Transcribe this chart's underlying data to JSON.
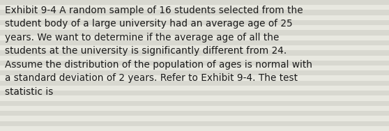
{
  "text": "Exhibit 9-4 A random sample of 16 students selected from the\nstudent body of a large university had an average age of 25\nyears. We want to determine if the average age of all the\nstudents at the university is significantly different from 24.\nAssume the distribution of the population of ages is normal with\na standard deviation of 2 years. Refer to Exhibit 9-4. The test\nstatistic is",
  "text_color": "#1a1a1a",
  "font_size": 9.8,
  "fig_width": 5.58,
  "fig_height": 1.88,
  "stripe_colors": [
    "#e8e8e0",
    "#d8d8d0"
  ],
  "num_stripes": 26
}
